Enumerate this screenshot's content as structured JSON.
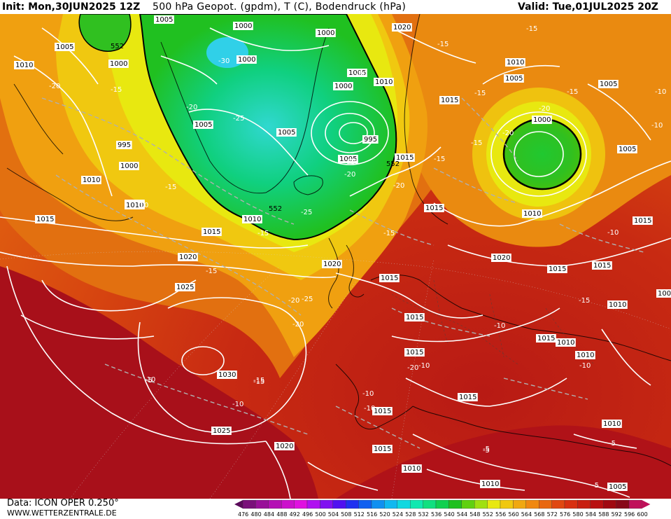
{
  "header": {
    "init": "Init: Mon,30JUN2025 12Z",
    "title": "500 hPa Geopot. (gpdm), T (C), Bodendruck (hPa)",
    "valid": "Valid: Tue,01JUL2025 20Z"
  },
  "footer": {
    "data_source": "Data: ICON OPER 0.250°",
    "website": "WWW.WETTERZENTRALE.DE"
  },
  "legend": {
    "values": [
      "476",
      "480",
      "484",
      "488",
      "492",
      "496",
      "500",
      "504",
      "508",
      "512",
      "516",
      "520",
      "524",
      "528",
      "532",
      "536",
      "540",
      "544",
      "548",
      "552",
      "556",
      "560",
      "564",
      "568",
      "572",
      "576",
      "580",
      "584",
      "588",
      "592",
      "596",
      "600"
    ],
    "colors": [
      "#5a0a5a",
      "#7a0f7a",
      "#990f99",
      "#b40fb4",
      "#cc10cc",
      "#e010e0",
      "#b010f0",
      "#8010f0",
      "#5010f0",
      "#2030f0",
      "#1060f0",
      "#1090f0",
      "#10b8f0",
      "#10d8e0",
      "#10e8b0",
      "#10e080",
      "#10d050",
      "#20c020",
      "#60d010",
      "#a0e010",
      "#e8e810",
      "#f0c810",
      "#f0a810",
      "#f08810",
      "#e86810",
      "#e04810",
      "#d83010",
      "#c82010",
      "#b81010",
      "#a00810",
      "#880818",
      "#c0105a"
    ]
  },
  "map": {
    "pressure_labels": [
      {
        "text": "1005"
      },
      {
        "text": "1005"
      },
      {
        "text": "1010"
      },
      {
        "text": "1000"
      },
      {
        "text": "1000"
      },
      {
        "text": "1000"
      },
      {
        "text": "1000"
      },
      {
        "text": "1020"
      },
      {
        "text": "1010"
      },
      {
        "text": "1005"
      },
      {
        "text": "1005"
      },
      {
        "text": "1000"
      },
      {
        "text": "1005"
      },
      {
        "text": "1005"
      },
      {
        "text": "1005"
      },
      {
        "text": "995"
      },
      {
        "text": "995"
      },
      {
        "text": "1000"
      },
      {
        "text": "1010"
      },
      {
        "text": "1015"
      },
      {
        "text": "1000"
      },
      {
        "text": "1005"
      },
      {
        "text": "1005"
      },
      {
        "text": "1010"
      },
      {
        "text": "1010"
      },
      {
        "text": "1015"
      },
      {
        "text": "1015"
      },
      {
        "text": "1015"
      },
      {
        "text": "1010"
      },
      {
        "text": "1015"
      },
      {
        "text": "1010"
      },
      {
        "text": "1015"
      },
      {
        "text": "1020"
      },
      {
        "text": "1020"
      },
      {
        "text": "1025"
      },
      {
        "text": "1015"
      },
      {
        "text": "1015"
      },
      {
        "text": "1020"
      },
      {
        "text": "1015"
      },
      {
        "text": "1010"
      },
      {
        "text": "1030"
      },
      {
        "text": "1015"
      },
      {
        "text": "1015"
      },
      {
        "text": "1010"
      },
      {
        "text": "1015"
      },
      {
        "text": "1015"
      },
      {
        "text": "1025"
      },
      {
        "text": "1020"
      },
      {
        "text": "1010"
      },
      {
        "text": "1015"
      },
      {
        "text": "1015"
      },
      {
        "text": "1010"
      },
      {
        "text": "1010"
      },
      {
        "text": "1010"
      },
      {
        "text": "1005"
      },
      {
        "text": "100"
      },
      {
        "text": "1010"
      }
    ],
    "temp_labels": [
      {
        "text": "-15"
      },
      {
        "text": "-15"
      },
      {
        "text": "-20"
      },
      {
        "text": "-15"
      },
      {
        "text": "-20"
      },
      {
        "text": "-15"
      },
      {
        "text": "-15"
      },
      {
        "text": "-10"
      },
      {
        "text": "-15"
      },
      {
        "text": "-10"
      },
      {
        "text": "-20"
      },
      {
        "text": "-25"
      },
      {
        "text": "-30"
      },
      {
        "text": "-25"
      },
      {
        "text": "-20"
      },
      {
        "text": "-20"
      },
      {
        "text": "-20"
      },
      {
        "text": "-15"
      },
      {
        "text": "-15"
      },
      {
        "text": "-20"
      },
      {
        "text": "-15"
      },
      {
        "text": "-10"
      },
      {
        "text": "-10"
      },
      {
        "text": "-15"
      },
      {
        "text": "-20"
      },
      {
        "text": "-25"
      },
      {
        "text": "-20"
      },
      {
        "text": "-15"
      },
      {
        "text": "-15"
      },
      {
        "text": "-10"
      },
      {
        "text": "-15"
      },
      {
        "text": "-10"
      },
      {
        "text": "-10"
      },
      {
        "text": "-10"
      },
      {
        "text": "-10"
      },
      {
        "text": "-15"
      },
      {
        "text": "-10"
      },
      {
        "text": "-5"
      },
      {
        "text": "-5"
      },
      {
        "text": "-5"
      },
      {
        "text": "-5"
      },
      {
        "text": "-10"
      },
      {
        "text": "-20"
      },
      {
        "text": "-20"
      },
      {
        "text": "-10"
      },
      {
        "text": "-5"
      }
    ],
    "geopot_labels": [
      {
        "text": "552"
      },
      {
        "text": "552"
      },
      {
        "text": "552"
      }
    ]
  }
}
